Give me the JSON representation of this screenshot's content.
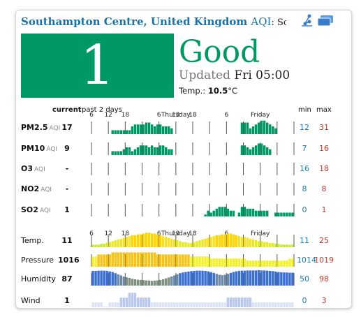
{
  "header": {
    "city": "Southampton Centre, United Kingdom",
    "aqi_word": "AQI",
    "station": ": Southamp",
    "icons": [
      "share-icon",
      "windows-icon"
    ]
  },
  "current": {
    "aqi": "1",
    "level": "Good",
    "updated_label": "Updated",
    "updated_time": "Fri 05:00",
    "temp_label": "Temp.:",
    "temp_value": "10.5",
    "temp_unit": "°C",
    "color": "#009966"
  },
  "table": {
    "current_header": "current",
    "history_header": "past 2 days",
    "min_header": "min",
    "max_header": "max",
    "axis_labels": [
      "6",
      "12",
      "18",
      "Thursday",
      "6",
      "12",
      "18",
      "Friday",
      "6"
    ]
  },
  "rows": [
    {
      "name": "PM2.5",
      "sub": "AQI",
      "current": "17",
      "min": "12",
      "max": "31",
      "kind": "aqi",
      "values": [
        null,
        null,
        null,
        null,
        null,
        null,
        null,
        2,
        2,
        2,
        2,
        2,
        2,
        2,
        4,
        5,
        5,
        5,
        5,
        6,
        6,
        5,
        4,
        5,
        5,
        4,
        4,
        4,
        3,
        null,
        null,
        null,
        null,
        null,
        null,
        null,
        null,
        null,
        null,
        null,
        null,
        null,
        null,
        null,
        null,
        null,
        null,
        null,
        null,
        null,
        null,
        null,
        null,
        6,
        6,
        6,
        3,
        4,
        5,
        6,
        7,
        7,
        6,
        5,
        4,
        3,
        null,
        null,
        null,
        null,
        null,
        null
      ]
    },
    {
      "name": "PM10",
      "sub": "AQI",
      "current": "9",
      "min": "7",
      "max": "16",
      "kind": "aqi",
      "values": [
        null,
        null,
        null,
        null,
        null,
        null,
        null,
        2,
        2,
        2,
        2,
        3,
        4,
        4,
        2,
        3,
        4,
        5,
        5,
        5,
        4,
        5,
        4,
        4,
        5,
        5,
        4,
        3,
        3,
        null,
        null,
        null,
        null,
        null,
        null,
        null,
        null,
        null,
        null,
        null,
        null,
        null,
        null,
        null,
        null,
        null,
        null,
        null,
        null,
        null,
        null,
        null,
        null,
        5,
        5,
        4,
        3,
        4,
        5,
        6,
        6,
        5,
        4,
        3,
        null,
        null,
        null,
        null,
        null,
        null,
        null,
        null
      ]
    },
    {
      "name": "O3",
      "sub": "AQI",
      "current": "-",
      "min": "16",
      "max": "18",
      "kind": "none",
      "values": []
    },
    {
      "name": "NO2",
      "sub": "AQI",
      "current": "-",
      "min": "8",
      "max": "8",
      "kind": "none",
      "values": []
    },
    {
      "name": "SO2",
      "sub": "AQI",
      "current": "1",
      "min": "0",
      "max": "1",
      "kind": "aqi",
      "values": [
        null,
        null,
        null,
        null,
        null,
        null,
        null,
        null,
        null,
        null,
        null,
        null,
        null,
        null,
        null,
        null,
        null,
        null,
        null,
        null,
        null,
        null,
        null,
        null,
        null,
        null,
        null,
        null,
        null,
        null,
        null,
        null,
        null,
        null,
        null,
        null,
        null,
        null,
        null,
        null,
        1,
        3,
        2,
        3,
        4,
        5,
        5,
        5,
        4,
        3,
        3,
        null,
        2,
        5,
        5,
        4,
        4,
        4,
        3,
        3,
        3,
        3,
        3,
        null,
        null,
        2,
        2,
        2,
        2,
        2,
        2,
        2
      ]
    },
    {
      "name": "Temp.",
      "sub": "",
      "current": "11",
      "min": "11",
      "max": "25",
      "kind": "temp",
      "values": [
        11,
        11,
        11,
        12,
        12,
        13,
        14,
        15,
        16,
        17,
        18,
        19,
        20,
        21,
        22,
        22,
        23,
        23,
        24,
        25,
        25,
        24,
        24,
        23,
        22,
        21,
        20,
        19,
        18,
        17,
        16,
        15,
        14,
        14,
        13,
        13,
        14,
        15,
        16,
        17,
        18,
        19,
        20,
        21,
        22,
        22,
        23,
        23,
        24,
        24,
        23,
        22,
        21,
        20,
        20,
        19,
        18,
        17,
        16,
        15,
        15,
        14,
        14,
        13,
        13,
        12,
        12,
        11,
        11,
        11,
        11,
        11
      ]
    },
    {
      "name": "Pressure",
      "sub": "",
      "current": "1016",
      "min": "1014",
      "max": "1019",
      "kind": "pressure",
      "values": [
        1017,
        1017,
        1018,
        1018,
        1018,
        1018,
        1018,
        1019,
        1019,
        1019,
        1019,
        1019,
        1019,
        1019,
        1019,
        1019,
        1019,
        1019,
        1019,
        1019,
        1019,
        1019,
        1019,
        1018,
        1018,
        1018,
        1018,
        1018,
        1018,
        1018,
        1018,
        1018,
        1018,
        1018,
        1018,
        1017,
        1017,
        1017,
        1017,
        1017,
        1017,
        1017,
        1016,
        1016,
        1016,
        1016,
        1016,
        1016,
        1016,
        1016,
        1016,
        1016,
        1016,
        1016,
        1016,
        1015,
        1015,
        1015,
        1015,
        1015,
        1015,
        1015,
        1015,
        1015,
        1015,
        1015,
        1015,
        1015,
        1015,
        1015,
        1016,
        1016
      ]
    },
    {
      "name": "Humidity",
      "sub": "",
      "current": "87",
      "min": "50",
      "max": "98",
      "kind": "humidity",
      "values": [
        95,
        95,
        96,
        96,
        96,
        95,
        93,
        90,
        85,
        80,
        75,
        70,
        67,
        64,
        60,
        58,
        56,
        55,
        54,
        53,
        52,
        51,
        52,
        53,
        55,
        58,
        62,
        66,
        70,
        75,
        80,
        85,
        88,
        90,
        92,
        94,
        95,
        96,
        96,
        96,
        95,
        93,
        90,
        86,
        82,
        78,
        76,
        78,
        82,
        86,
        90,
        93,
        95,
        96,
        96,
        97,
        97,
        97,
        97,
        98,
        97,
        97,
        96,
        95,
        94,
        92,
        90,
        89,
        88,
        88,
        87,
        87
      ]
    },
    {
      "name": "Wind",
      "sub": "",
      "current": "1",
      "min": "0",
      "max": "3",
      "kind": "wind",
      "values": [
        1,
        1,
        1,
        1,
        0,
        0,
        1,
        1,
        1,
        1,
        2,
        2,
        2,
        3,
        3,
        3,
        2,
        2,
        2,
        2,
        2,
        1,
        1,
        1,
        1,
        1,
        1,
        1,
        1,
        1,
        1,
        1,
        1,
        1,
        1,
        1,
        1,
        1,
        1,
        1,
        1,
        1,
        1,
        1,
        1,
        1,
        1,
        1,
        2,
        2,
        2,
        2,
        2,
        2,
        2,
        2,
        2,
        1,
        1,
        1,
        1,
        1,
        1,
        1,
        1,
        1,
        1,
        1,
        1,
        1,
        1,
        1
      ]
    }
  ]
}
